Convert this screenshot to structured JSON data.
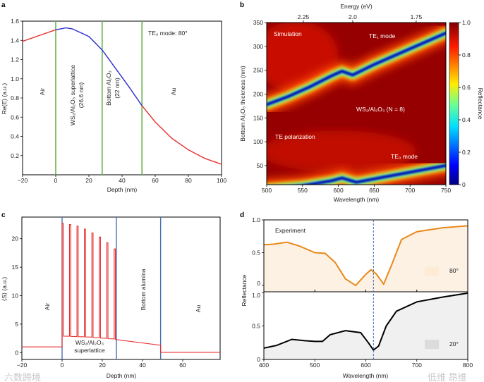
{
  "panels": {
    "a": "a",
    "b": "b",
    "c": "c",
    "d": "d"
  },
  "colors": {
    "red": "#e8302f",
    "blue": "#2a2ad0",
    "green": "#6ab04c",
    "layer_line_c": "#4a6fb0",
    "orange": "#e8891a",
    "black": "#000000",
    "orange_fill": "#fdf1e4",
    "gray_fill": "#f0f0f0",
    "dashed": "#3a62c0"
  },
  "watermarks": [
    "六数跨境",
    "低维 昂维"
  ],
  "chart_data": [
    {
      "id": "a",
      "type": "line",
      "xlabel": "Depth (nm)",
      "ylabel": "Re(E) (a.u.)",
      "xlim": [
        -20,
        100
      ],
      "ylim": [
        0,
        1.6
      ],
      "xticks": [
        -20,
        0,
        20,
        40,
        60,
        80,
        100
      ],
      "yticks": [
        0.2,
        0.4,
        0.6,
        0.8,
        1.0,
        1.2,
        1.4,
        1.6
      ],
      "ytick_labels": [
        "0.2",
        "0.4",
        "0.6",
        "0.8",
        "1.0",
        "1.2",
        "1.4",
        "1.6"
      ],
      "x": [
        -20,
        -10,
        0,
        6,
        10,
        20,
        28,
        36,
        44,
        52,
        60,
        70,
        80,
        90,
        100
      ],
      "y": [
        1.39,
        1.45,
        1.51,
        1.53,
        1.52,
        1.44,
        1.3,
        1.11,
        0.92,
        0.72,
        0.55,
        0.38,
        0.26,
        0.17,
        0.11
      ],
      "segment_bounds": [
        0,
        52
      ],
      "segment_colors": [
        "#e8302f",
        "#2a2ad0",
        "#e8302f"
      ],
      "interfaces": [
        0,
        28,
        52
      ],
      "annotations": {
        "mode": "TE₀ mode: 80°",
        "air": "Air",
        "sl": "WS₂/Al₂O₃ superlattice",
        "sl_thk": "(26.6 nm)",
        "bottom": "Bottom Al₂O₃",
        "bottom_thk": "(22 nm)",
        "au": "Au"
      }
    },
    {
      "id": "b",
      "type": "heatmap",
      "title": "Simulation",
      "xlabel": "Wavelength (nm)",
      "ylabel": "Bottom Al₂O₃ thickness (nm)",
      "top_xlabel": "Energy (eV)",
      "top_xticks": [
        2.25,
        2.0,
        1.75
      ],
      "top_xtick_labels": [
        "2.25",
        "2.0",
        "1.75"
      ],
      "xlim": [
        500,
        750
      ],
      "ylim": [
        10,
        350
      ],
      "xticks": [
        500,
        550,
        600,
        650,
        700,
        750
      ],
      "yticks": [
        50,
        100,
        150,
        200,
        250,
        300,
        350
      ],
      "colorbar": {
        "label": "Reflectance",
        "range": [
          0,
          1
        ],
        "ticks": [
          0,
          0.2,
          0.4,
          0.6,
          0.8,
          1.0
        ],
        "tick_labels": [
          "0",
          "0.2",
          "0.4",
          "0.6",
          "0.8",
          "1.0"
        ]
      },
      "modes": [
        {
          "name": "TE₁ mode",
          "x": [
            500,
            530,
            560,
            590,
            605,
            620,
            650,
            700,
            750
          ],
          "y": [
            178,
            195,
            215,
            238,
            248,
            240,
            262,
            295,
            328
          ]
        },
        {
          "name": "TE₀ mode",
          "x": [
            500,
            550,
            590,
            605,
            625,
            660,
            700,
            750
          ],
          "y": [
            2,
            8,
            18,
            24,
            15,
            25,
            36,
            50
          ]
        }
      ],
      "annotations": {
        "sim": "Simulation",
        "te1": "TE₁ mode",
        "n8": "WS₂/Al₂O₃ (N = 8)",
        "tepol": "TE polarization",
        "te0": "TE₀ mode"
      }
    },
    {
      "id": "c",
      "type": "line",
      "xlabel": "Depth (nm)",
      "ylabel": "⟨S⟩ (a.u.)",
      "xlim": [
        -20,
        78.6
      ],
      "ylim": [
        -1.2,
        23.8
      ],
      "xticks": [
        -20,
        0,
        20,
        40,
        60
      ],
      "yticks": [
        0,
        5,
        10,
        15,
        20
      ],
      "air_level": 1.0,
      "spike_x": [
        0,
        3.7,
        7.4,
        11.1,
        14.8,
        18.5,
        22.2,
        25.9
      ],
      "spike_heights": [
        22.7,
        22.5,
        22.2,
        21.7,
        21.0,
        20.3,
        19.3,
        18.2
      ],
      "spike_base": [
        2.9,
        2.85,
        2.8,
        2.75,
        2.65,
        2.55,
        2.45,
        2.35
      ],
      "spike_width": 0.6,
      "bottom_alumina": {
        "x": [
          26.5,
          49
        ],
        "y": [
          2.3,
          1.3
        ]
      },
      "au_level": 0.05,
      "interfaces": [
        0,
        27,
        49
      ],
      "annotations": {
        "air": "Air",
        "sl1": "WS₂/Al₂O₃",
        "sl2": "superlattice",
        "bottom": "Bottom alumina",
        "au": "Au"
      }
    },
    {
      "id": "d",
      "type": "area",
      "title": "Experiment",
      "xlabel": "Wavelength (nm)",
      "ylabel": "Reflectance",
      "xlim": [
        400,
        800
      ],
      "xticks": [
        400,
        500,
        600,
        700,
        800
      ],
      "yticks": [
        0,
        0.5,
        1.0
      ],
      "ytick_labels": [
        "0",
        "0.5",
        "1.0"
      ],
      "marker_x": 615,
      "series": [
        {
          "name": "80°",
          "color": "#e8891a",
          "x": [
            400,
            420,
            445,
            470,
            500,
            520,
            540,
            560,
            580,
            600,
            610,
            620,
            635,
            650,
            670,
            700,
            750,
            800
          ],
          "y": [
            0.62,
            0.63,
            0.66,
            0.6,
            0.5,
            0.49,
            0.35,
            0.1,
            0.0,
            0.17,
            0.24,
            0.18,
            0.02,
            0.3,
            0.7,
            0.82,
            0.88,
            0.91
          ]
        },
        {
          "name": "20°",
          "color": "#000000",
          "x": [
            400,
            425,
            455,
            480,
            500,
            515,
            530,
            560,
            590,
            605,
            615,
            625,
            640,
            660,
            700,
            750,
            800
          ],
          "y": [
            0.17,
            0.21,
            0.3,
            0.28,
            0.27,
            0.27,
            0.37,
            0.43,
            0.4,
            0.25,
            0.14,
            0.2,
            0.5,
            0.72,
            0.86,
            0.93,
            0.99
          ]
        }
      ]
    }
  ]
}
